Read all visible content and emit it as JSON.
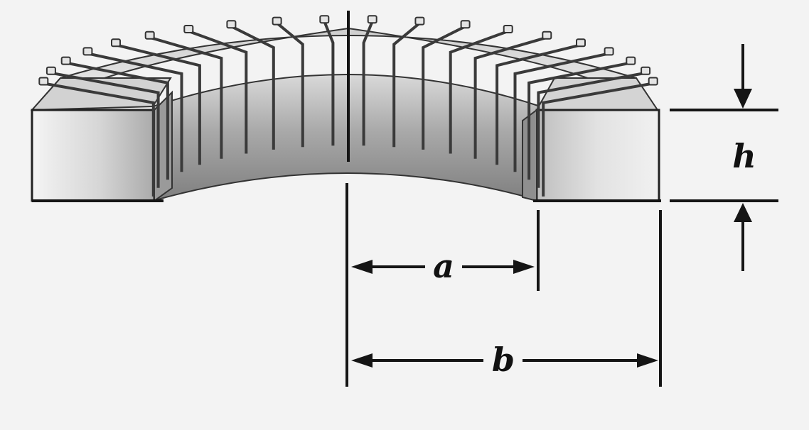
{
  "figure": {
    "labels": {
      "inner_radius": "a",
      "outer_radius": "b",
      "height": "h"
    },
    "colors": {
      "background": "#f3f3f3",
      "ink": "#151515",
      "core_light": "#e9e9e9",
      "core_mid": "#bdbdbd",
      "core_dark": "#8f8f8f",
      "winding": "#5a5a5a"
    }
  }
}
